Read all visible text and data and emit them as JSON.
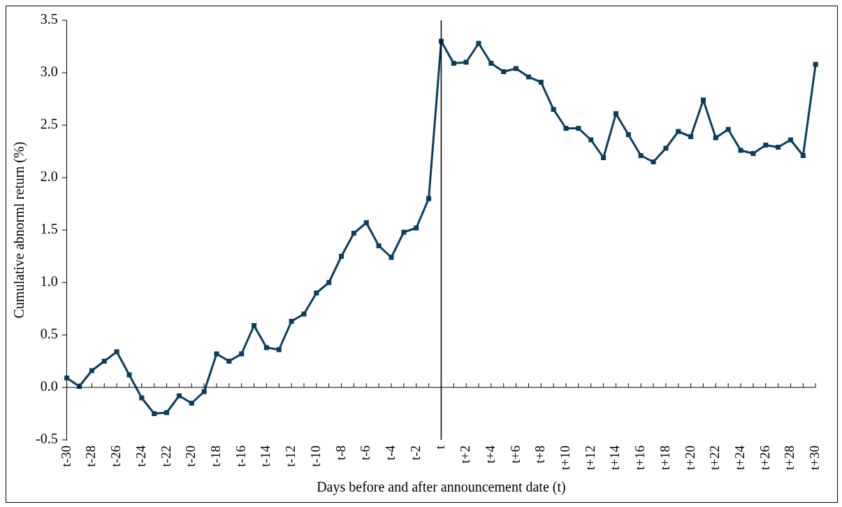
{
  "chart_data": {
    "type": "line",
    "xlabel": "Days before and after announcement date (t)",
    "ylabel": "Cumulative abnorml return (%)",
    "categories": [
      "t-30",
      null,
      "t-28",
      null,
      "t-26",
      null,
      "t-24",
      null,
      "t-22",
      null,
      "t-20",
      null,
      "t-18",
      null,
      "t-16",
      null,
      "t-14",
      null,
      "t-12",
      null,
      "t-10",
      null,
      "t-8",
      null,
      "t-6",
      null,
      "t-4",
      null,
      "t-2",
      null,
      "t",
      null,
      "t+2",
      null,
      "t+4",
      null,
      "t+6",
      null,
      "t+8",
      null,
      "t+10",
      null,
      "t+12",
      null,
      "t+14",
      null,
      "t+16",
      null,
      "t+18",
      null,
      "t+20",
      null,
      "t+22",
      null,
      "t+24",
      null,
      "t+26",
      null,
      "t+28",
      null,
      "t+30"
    ],
    "series": [
      {
        "color": "#0b3d5c",
        "values": [
          0.09,
          0.01,
          0.16,
          0.25,
          0.34,
          0.12,
          -0.1,
          -0.25,
          -0.24,
          -0.08,
          -0.15,
          -0.04,
          0.32,
          0.25,
          0.32,
          0.59,
          0.38,
          0.36,
          0.63,
          0.7,
          0.9,
          1.0,
          1.25,
          1.47,
          1.57,
          1.35,
          1.24,
          1.48,
          1.52,
          1.8,
          3.3,
          3.09,
          3.1,
          3.28,
          3.09,
          3.01,
          3.04,
          2.96,
          2.91,
          2.65,
          2.47,
          2.47,
          2.36,
          2.19,
          2.61,
          2.41,
          2.21,
          2.15,
          2.28,
          2.44,
          2.39,
          2.74,
          2.38,
          2.46,
          2.26,
          2.23,
          2.31,
          2.29,
          2.36,
          2.21,
          3.08
        ]
      }
    ],
    "ylim": [
      -0.5,
      3.5
    ],
    "yticks": [
      {
        "value": -0.5,
        "label": "-0.5"
      },
      {
        "value": 0,
        "label": "0.0"
      },
      {
        "value": 0.5,
        "label": "0.5"
      },
      {
        "value": 1,
        "label": "1.0"
      },
      {
        "value": 1.5,
        "label": "1.5"
      },
      {
        "value": 2,
        "label": "2.0"
      },
      {
        "value": 2.5,
        "label": "2.5"
      },
      {
        "value": 3,
        "label": "3.0"
      },
      {
        "value": 3.5,
        "label": "3.5"
      }
    ],
    "ref_lines": [
      {
        "axis": "x",
        "value": "t",
        "color": "#000000"
      }
    ],
    "grid": false,
    "legend": false,
    "marker": "square",
    "line_style": "solid"
  }
}
